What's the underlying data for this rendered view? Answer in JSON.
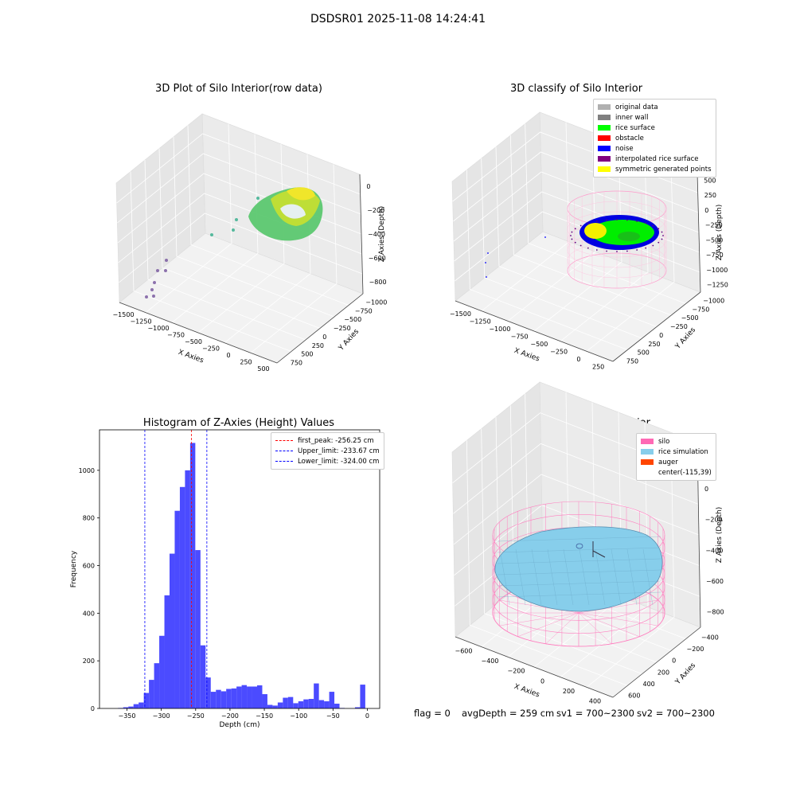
{
  "suptitle": "DSDSR01 2025-11-08 14:24:41",
  "panel1": {
    "title": "3D Plot of Silo Interior(row data)",
    "xlabel": "X Axies",
    "ylabel": "Y Axies",
    "zlabel": "Z Axies (Depth)",
    "xticks": [
      "−1500",
      "−1250",
      "−1000",
      "−750",
      "−500",
      "−250",
      "0",
      "250",
      "500"
    ],
    "yticks": [
      "750",
      "500",
      "250",
      "0",
      "−250",
      "−500",
      "−750",
      "−1000"
    ],
    "zticks": [
      "0",
      "−200",
      "−400",
      "−600",
      "−800"
    ]
  },
  "panel2": {
    "title": "3D classify of Silo Interior",
    "xlabel": "X Axies",
    "ylabel": "Y Axies",
    "zlabel": "Z Axies (Depth)",
    "xticks": [
      "−1500",
      "−1250",
      "−1000",
      "−750",
      "−500",
      "−250",
      "0",
      "250"
    ],
    "yticks": [
      "750",
      "500",
      "250",
      "0",
      "−250",
      "−500",
      "−750",
      "−1000"
    ],
    "zticks": [
      "500",
      "250",
      "0",
      "−250",
      "−500",
      "−750",
      "−1000",
      "−1250"
    ],
    "legend": [
      {
        "label": "original data",
        "color": "#b0b0b0"
      },
      {
        "label": "inner wall",
        "color": "#808080"
      },
      {
        "label": "rice surface",
        "color": "#00ff00"
      },
      {
        "label": "obstacle",
        "color": "#ff0000"
      },
      {
        "label": "noise",
        "color": "#0000ff"
      },
      {
        "label": "interpolated rice surface",
        "color": "#800080"
      },
      {
        "label": "symmetric generated points",
        "color": "#ffff00"
      }
    ]
  },
  "panel3": {
    "title": "Histogram of Z-Axies (Height) Values",
    "legend": [
      {
        "label": "first_peak: -256.25 cm",
        "color": "#ff0000"
      },
      {
        "label": "Upper_limit: -233.67 cm",
        "color": "#0000ff"
      },
      {
        "label": "Lower_limit: -324.00 cm",
        "color": "#0000ff"
      }
    ]
  },
  "panel4": {
    "title": "3D simulation of Silo Interior",
    "xlabel": "X Axies",
    "ylabel": "Y Axies",
    "zlabel": "Z Axies (Depth)",
    "xticks": [
      "−600",
      "−400",
      "−200",
      "0",
      "200",
      "400"
    ],
    "yticks": [
      "600",
      "400",
      "200",
      "0",
      "−200",
      "−400"
    ],
    "zticks": [
      "200",
      "0",
      "−200",
      "−400",
      "−600",
      "−800"
    ],
    "legend": [
      {
        "label": "silo",
        "color": "#ff69b4"
      },
      {
        "label": "rice simulation",
        "color": "#87ceeb"
      },
      {
        "label": "auger",
        "color": "#ff4500"
      },
      {
        "label": "center(-115,39)",
        "color": ""
      }
    ]
  },
  "footer": {
    "flag": "flag = 0",
    "avg": "avgDepth = 259 cm",
    "sv1": "sv1 = 700~2300",
    "sv2": "sv2 = 700~2300"
  },
  "chart_data": {
    "type": "bar",
    "title": "Histogram of Z-Axies (Height) Values",
    "xlabel": "Depth (cm)",
    "ylabel": "Frequency",
    "xlim": [
      -390,
      18
    ],
    "ylim": [
      0,
      1170
    ],
    "xticks": [
      -350,
      -300,
      -250,
      -200,
      -150,
      -100,
      -50,
      0
    ],
    "yticks": [
      0,
      200,
      400,
      600,
      800,
      1000
    ],
    "bar_color": "#4b4bff",
    "bin_width": 7.5,
    "bins_left": [
      -363,
      -355.5,
      -348,
      -340.5,
      -333,
      -325.5,
      -318,
      -310.5,
      -303,
      -295.5,
      -288,
      -280.5,
      -273,
      -265.5,
      -258,
      -250.5,
      -243,
      -235.5,
      -228,
      -220.5,
      -213,
      -205.5,
      -198,
      -190.5,
      -183,
      -175.5,
      -168,
      -160.5,
      -153,
      -145.5,
      -138,
      -130.5,
      -123,
      -115.5,
      -108,
      -100.5,
      -93,
      -85.5,
      -78,
      -70.5,
      -63,
      -55.5,
      -48,
      -40.5,
      -33,
      -25.5,
      -18,
      -10.5,
      -3
    ],
    "values": [
      2,
      5,
      8,
      18,
      25,
      65,
      120,
      190,
      305,
      475,
      650,
      830,
      930,
      1000,
      1115,
      665,
      265,
      130,
      70,
      78,
      72,
      82,
      84,
      92,
      98,
      92,
      92,
      97,
      60,
      15,
      12,
      25,
      45,
      48,
      22,
      30,
      38,
      40,
      105,
      35,
      30,
      70,
      20,
      2,
      0,
      0,
      5,
      100,
      0
    ],
    "series": [
      {
        "name": "first_peak: -256.25 cm",
        "type": "vline",
        "x": -256.25,
        "color": "#ff0000"
      },
      {
        "name": "Upper_limit: -233.67 cm",
        "type": "vline",
        "x": -233.67,
        "color": "#0000ff"
      },
      {
        "name": "Lower_limit: -324.00 cm",
        "type": "vline",
        "x": -324.0,
        "color": "#0000ff"
      }
    ],
    "legend_position": "top-right",
    "grid": false
  }
}
